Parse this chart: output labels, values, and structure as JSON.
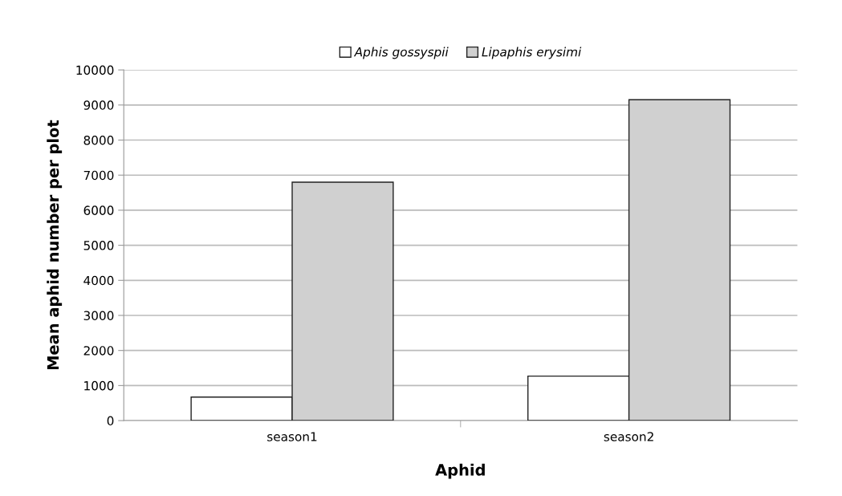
{
  "chart_data": {
    "type": "bar",
    "xlabel": "Aphid",
    "ylabel": "Mean aphid number per plot",
    "categories": [
      "season1",
      "season2"
    ],
    "series": [
      {
        "name": "Aphis gossyspii",
        "color": "#ffffff",
        "values": [
          670,
          1270
        ]
      },
      {
        "name": "Lipaphis erysimi",
        "color": "#d0d0d0",
        "values": [
          6800,
          9150
        ]
      }
    ],
    "ylim": [
      0,
      10000
    ],
    "yticks": [
      0,
      1000,
      2000,
      3000,
      4000,
      5000,
      6000,
      7000,
      8000,
      9000,
      10000
    ],
    "grid": "y",
    "legend": "top"
  }
}
